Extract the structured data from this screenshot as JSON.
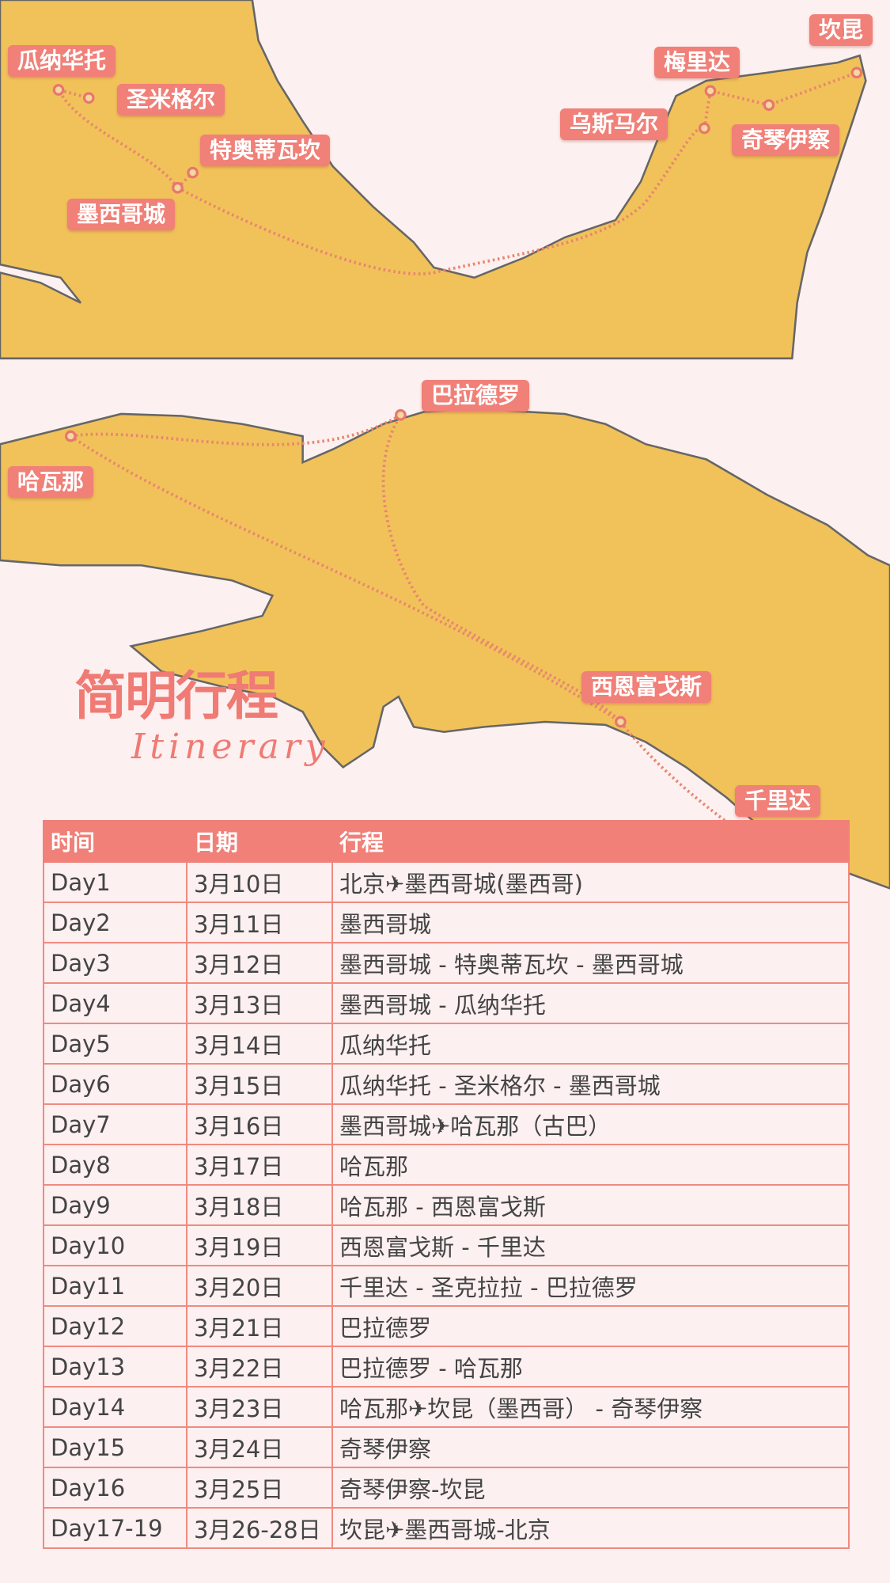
{
  "colors": {
    "land": "#f1c25a",
    "label_bg": "#f08078",
    "route": "#e8866e",
    "background": "#fdf0f0",
    "table_border": "#f08a80"
  },
  "map": {
    "labels": [
      "瓜纳华托",
      "圣米格尔",
      "特奥蒂瓦坎",
      "墨西哥城",
      "坎昆",
      "梅里达",
      "乌斯马尔",
      "奇琴伊察",
      "巴拉德罗",
      "哈瓦那",
      "西恩富戈斯",
      "千里达"
    ]
  },
  "title": {
    "cn": "简明行程",
    "en": "Itinerary"
  },
  "table": {
    "headers": [
      "时间",
      "日期",
      "行程"
    ],
    "rows": [
      [
        "Day1",
        "3月10日",
        "北京✈墨西哥城(墨西哥)"
      ],
      [
        "Day2",
        "3月11日",
        "墨西哥城"
      ],
      [
        "Day3",
        "3月12日",
        "墨西哥城 - 特奥蒂瓦坎 - 墨西哥城"
      ],
      [
        "Day4",
        "3月13日",
        "墨西哥城 - 瓜纳华托"
      ],
      [
        "Day5",
        "3月14日",
        "瓜纳华托"
      ],
      [
        "Day6",
        "3月15日",
        "瓜纳华托 - 圣米格尔 - 墨西哥城"
      ],
      [
        "Day7",
        "3月16日",
        "墨西哥城✈哈瓦那（古巴）"
      ],
      [
        "Day8",
        "3月17日",
        "哈瓦那"
      ],
      [
        "Day9",
        "3月18日",
        "哈瓦那 - 西恩富戈斯"
      ],
      [
        "Day10",
        "3月19日",
        "西恩富戈斯 - 千里达"
      ],
      [
        "Day11",
        "3月20日",
        "千里达 - 圣克拉拉 - 巴拉德罗"
      ],
      [
        "Day12",
        "3月21日",
        "巴拉德罗"
      ],
      [
        "Day13",
        "3月22日",
        "巴拉德罗 - 哈瓦那"
      ],
      [
        "Day14",
        "3月23日",
        "哈瓦那✈坎昆（墨西哥） - 奇琴伊察"
      ],
      [
        "Day15",
        "3月24日",
        "奇琴伊察"
      ],
      [
        "Day16",
        "3月25日",
        "奇琴伊察-坎昆"
      ],
      [
        "Day17-19",
        "3月26-28日",
        "坎昆✈墨西哥城-北京"
      ]
    ]
  }
}
